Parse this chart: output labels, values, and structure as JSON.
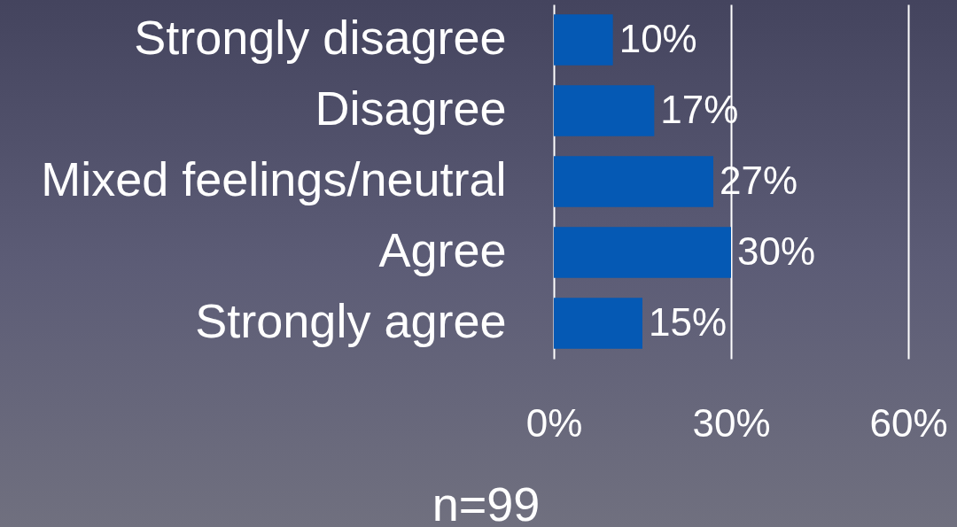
{
  "chart_data": {
    "type": "bar",
    "orientation": "horizontal",
    "categories": [
      "Strongly disagree",
      "Disagree",
      "Mixed feelings/neutral",
      "Agree",
      "Strongly agree"
    ],
    "values": [
      10,
      17,
      27,
      30,
      15
    ],
    "value_labels": [
      "10%",
      "17%",
      "27%",
      "30%",
      "15%"
    ],
    "color": "#0559b4",
    "xlim": [
      0,
      60
    ],
    "xticks": [
      {
        "value": 0,
        "label": "0%"
      },
      {
        "value": 30,
        "label": "30%"
      },
      {
        "value": 60,
        "label": "60%"
      }
    ],
    "grid": "x",
    "xlabel": "n=99"
  }
}
